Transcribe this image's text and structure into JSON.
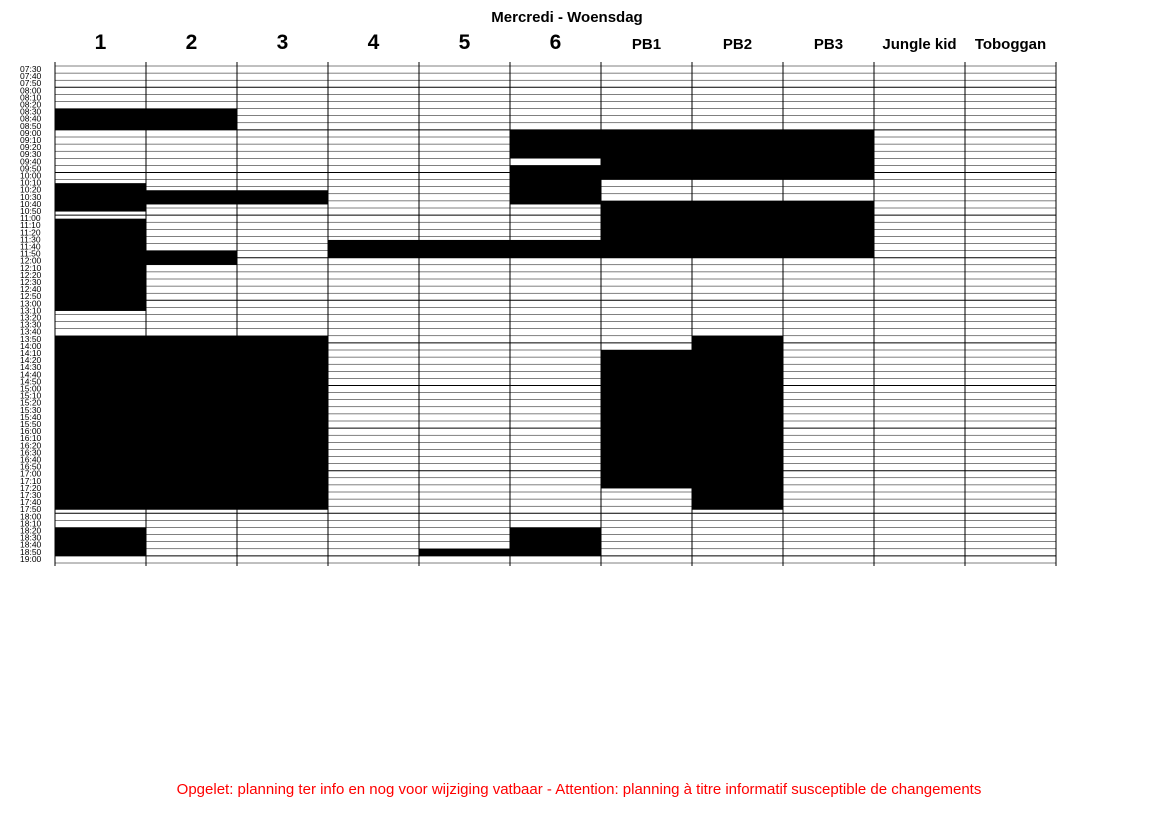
{
  "title": "Mercredi - Woensdag",
  "columns": [
    "1",
    "2",
    "3",
    "4",
    "5",
    "6",
    "PB1",
    "PB2",
    "PB3",
    "Jungle kid",
    "Toboggan"
  ],
  "time_slots": [
    "07:30",
    "07:40",
    "07:50",
    "08:00",
    "08:10",
    "08:20",
    "08:30",
    "08:40",
    "08:50",
    "09:00",
    "09:10",
    "09:20",
    "09:30",
    "09:40",
    "09:50",
    "10:00",
    "10:10",
    "10:20",
    "10:30",
    "10:40",
    "10:50",
    "11:00",
    "11:10",
    "11:20",
    "11:30",
    "11:40",
    "11:50",
    "12:00",
    "12:10",
    "12:20",
    "12:30",
    "12:40",
    "12:50",
    "13:00",
    "13:10",
    "13:20",
    "13:30",
    "13:40",
    "13:50",
    "14:00",
    "14:10",
    "14:20",
    "14:30",
    "14:40",
    "14:50",
    "15:00",
    "15:10",
    "15:20",
    "15:30",
    "15:40",
    "15:50",
    "16:00",
    "16:10",
    "16:20",
    "16:30",
    "16:40",
    "16:50",
    "17:00",
    "17:10",
    "17:20",
    "17:30",
    "17:40",
    "17:50",
    "18:00",
    "18:10",
    "18:20",
    "18:30",
    "18:40",
    "18:50",
    "19:00"
  ],
  "bookings": [
    {
      "column": "1",
      "start": "08:30",
      "end": "09:00"
    },
    {
      "column": "1",
      "start": "10:15",
      "end": "10:55"
    },
    {
      "column": "1",
      "start": "11:05",
      "end": "13:15"
    },
    {
      "column": "1",
      "start": "13:50",
      "end": "17:55"
    },
    {
      "column": "1",
      "start": "18:20",
      "end": "19:00"
    },
    {
      "column": "2",
      "start": "08:30",
      "end": "09:00"
    },
    {
      "column": "2",
      "start": "10:25",
      "end": "10:45"
    },
    {
      "column": "2",
      "start": "11:50",
      "end": "12:10"
    },
    {
      "column": "2",
      "start": "13:50",
      "end": "17:55"
    },
    {
      "column": "3",
      "start": "10:25",
      "end": "10:45"
    },
    {
      "column": "3",
      "start": "13:50",
      "end": "17:55"
    },
    {
      "column": "4",
      "start": "11:35",
      "end": "12:00"
    },
    {
      "column": "5",
      "start": "11:35",
      "end": "12:00"
    },
    {
      "column": "5",
      "start": "18:50",
      "end": "19:00"
    },
    {
      "column": "6",
      "start": "09:00",
      "end": "09:40"
    },
    {
      "column": "6",
      "start": "09:50",
      "end": "10:45"
    },
    {
      "column": "6",
      "start": "11:35",
      "end": "12:00"
    },
    {
      "column": "6",
      "start": "18:20",
      "end": "19:00"
    },
    {
      "column": "PB1",
      "start": "09:00",
      "end": "10:10"
    },
    {
      "column": "PB1",
      "start": "10:40",
      "end": "12:00"
    },
    {
      "column": "PB1",
      "start": "14:10",
      "end": "17:25"
    },
    {
      "column": "PB2",
      "start": "09:00",
      "end": "10:10"
    },
    {
      "column": "PB2",
      "start": "10:40",
      "end": "12:00"
    },
    {
      "column": "PB2",
      "start": "13:50",
      "end": "17:55"
    },
    {
      "column": "PB3",
      "start": "09:00",
      "end": "10:10"
    },
    {
      "column": "PB3",
      "start": "10:40",
      "end": "12:00"
    }
  ],
  "notice": "Opgelet: planning ter info en nog voor wijziging vatbaar - Attention: planning à titre informatif susceptible de changements",
  "colors": {
    "booked": "#000000",
    "grid": "#000000",
    "notice": "#ff0000"
  }
}
